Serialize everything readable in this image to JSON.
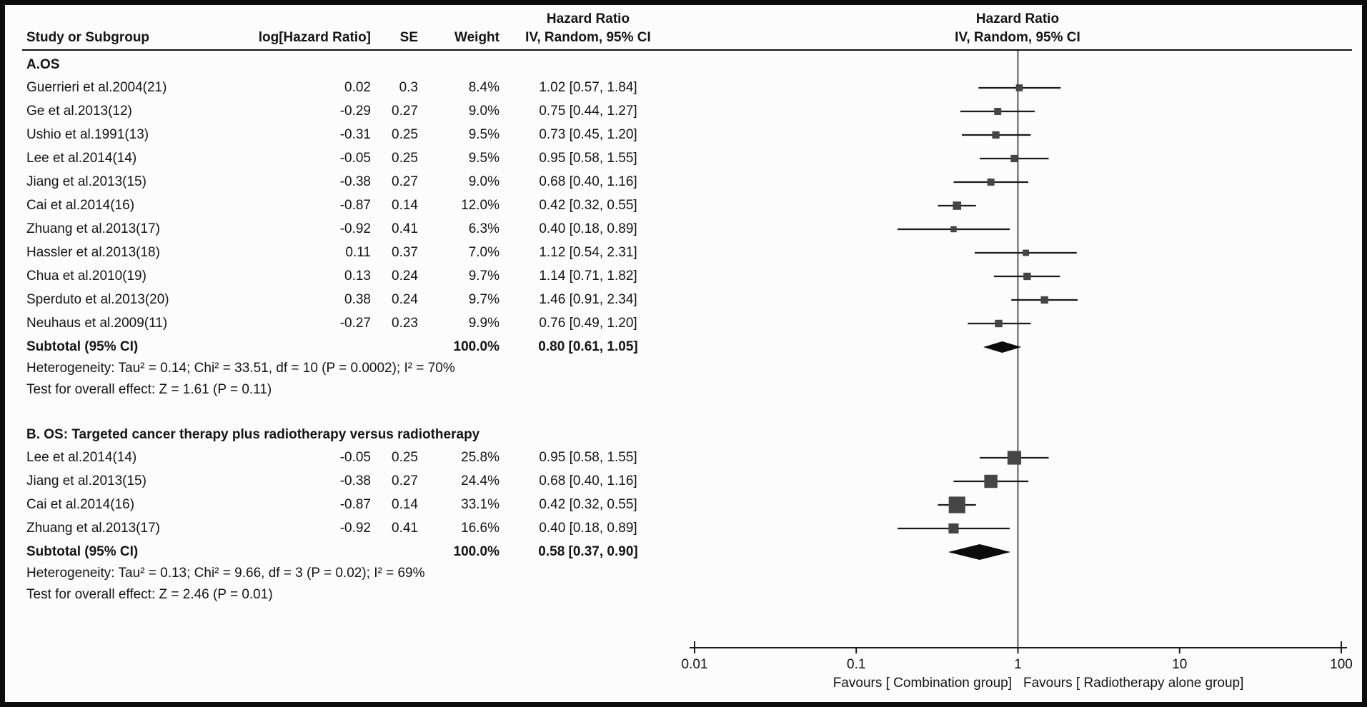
{
  "header": {
    "hr_title": "Hazard Ratio",
    "iv_random": "IV, Random, 95% CI",
    "study": "Study or Subgroup",
    "loghr": "log[Hazard Ratio]",
    "se": "SE",
    "weight": "Weight"
  },
  "chart_data": {
    "type": "forest",
    "x_scale": "log",
    "x_range": [
      0.01,
      100
    ],
    "x_ticks": [
      "0.01",
      "0.1",
      "1",
      "10",
      "100"
    ],
    "favours_left": "Favours [ Combination group]",
    "favours_right": "Favours [ Radiotherapy alone group]",
    "marker_color": "#454545",
    "line_color": "#1b1b1b",
    "sections": [
      {
        "label": "A.OS",
        "studies": [
          {
            "name": "Guerrieri et al.2004(21)",
            "log_hr": "0.02",
            "se": "0.3",
            "weight": "8.4%",
            "ci_text": "1.02 [0.57, 1.84]",
            "hr": 1.02,
            "lo": 0.57,
            "hi": 1.84,
            "weight_pct": 8.4
          },
          {
            "name": "Ge et al.2013(12)",
            "log_hr": "-0.29",
            "se": "0.27",
            "weight": "9.0%",
            "ci_text": "0.75 [0.44, 1.27]",
            "hr": 0.75,
            "lo": 0.44,
            "hi": 1.27,
            "weight_pct": 9.0
          },
          {
            "name": "Ushio et al.1991(13)",
            "log_hr": "-0.31",
            "se": "0.25",
            "weight": "9.5%",
            "ci_text": "0.73 [0.45, 1.20]",
            "hr": 0.73,
            "lo": 0.45,
            "hi": 1.2,
            "weight_pct": 9.5
          },
          {
            "name": "Lee et al.2014(14)",
            "log_hr": "-0.05",
            "se": "0.25",
            "weight": "9.5%",
            "ci_text": "0.95 [0.58, 1.55]",
            "hr": 0.95,
            "lo": 0.58,
            "hi": 1.55,
            "weight_pct": 9.5
          },
          {
            "name": "Jiang et al.2013(15)",
            "log_hr": "-0.38",
            "se": "0.27",
            "weight": "9.0%",
            "ci_text": "0.68 [0.40, 1.16]",
            "hr": 0.68,
            "lo": 0.4,
            "hi": 1.16,
            "weight_pct": 9.0
          },
          {
            "name": "Cai et al.2014(16)",
            "log_hr": "-0.87",
            "se": "0.14",
            "weight": "12.0%",
            "ci_text": "0.42 [0.32, 0.55]",
            "hr": 0.42,
            "lo": 0.32,
            "hi": 0.55,
            "weight_pct": 12.0
          },
          {
            "name": "Zhuang et al.2013(17)",
            "log_hr": "-0.92",
            "se": "0.41",
            "weight": "6.3%",
            "ci_text": "0.40 [0.18, 0.89]",
            "hr": 0.4,
            "lo": 0.18,
            "hi": 0.89,
            "weight_pct": 6.3
          },
          {
            "name": "Hassler et al.2013(18)",
            "log_hr": "0.11",
            "se": "0.37",
            "weight": "7.0%",
            "ci_text": "1.12 [0.54, 2.31]",
            "hr": 1.12,
            "lo": 0.54,
            "hi": 2.31,
            "weight_pct": 7.0
          },
          {
            "name": "Chua et al.2010(19)",
            "log_hr": "0.13",
            "se": "0.24",
            "weight": "9.7%",
            "ci_text": "1.14 [0.71, 1.82]",
            "hr": 1.14,
            "lo": 0.71,
            "hi": 1.82,
            "weight_pct": 9.7
          },
          {
            "name": "Sperduto et al.2013(20)",
            "log_hr": "0.38",
            "se": "0.24",
            "weight": "9.7%",
            "ci_text": "1.46 [0.91, 2.34]",
            "hr": 1.46,
            "lo": 0.91,
            "hi": 2.34,
            "weight_pct": 9.7
          },
          {
            "name": "Neuhaus et al.2009(11)",
            "log_hr": "-0.27",
            "se": "0.23",
            "weight": "9.9%",
            "ci_text": "0.76 [0.49, 1.20]",
            "hr": 0.76,
            "lo": 0.49,
            "hi": 1.2,
            "weight_pct": 9.9
          }
        ],
        "subtotal": {
          "label": "Subtotal (95% CI)",
          "weight": "100.0%",
          "ci_text": "0.80 [0.61, 1.05]",
          "hr": 0.8,
          "lo": 0.61,
          "hi": 1.05
        },
        "heterogeneity": "Heterogeneity: Tau² = 0.14; Chi² = 33.51, df = 10 (P = 0.0002); I² = 70%",
        "overall_effect": "Test for overall effect: Z = 1.61 (P = 0.11)"
      },
      {
        "label": "B. OS: Targeted cancer therapy plus radiotherapy versus radiotherapy",
        "studies": [
          {
            "name": "Lee et al.2014(14)",
            "log_hr": "-0.05",
            "se": "0.25",
            "weight": "25.8%",
            "ci_text": "0.95 [0.58, 1.55]",
            "hr": 0.95,
            "lo": 0.58,
            "hi": 1.55,
            "weight_pct": 25.8
          },
          {
            "name": "Jiang et al.2013(15)",
            "log_hr": "-0.38",
            "se": "0.27",
            "weight": "24.4%",
            "ci_text": "0.68 [0.40, 1.16]",
            "hr": 0.68,
            "lo": 0.4,
            "hi": 1.16,
            "weight_pct": 24.4
          },
          {
            "name": "Cai et al.2014(16)",
            "log_hr": "-0.87",
            "se": "0.14",
            "weight": "33.1%",
            "ci_text": "0.42 [0.32, 0.55]",
            "hr": 0.42,
            "lo": 0.32,
            "hi": 0.55,
            "weight_pct": 33.1
          },
          {
            "name": "Zhuang et al.2013(17)",
            "log_hr": "-0.92",
            "se": "0.41",
            "weight": "16.6%",
            "ci_text": "0.40 [0.18, 0.89]",
            "hr": 0.4,
            "lo": 0.18,
            "hi": 0.89,
            "weight_pct": 16.6
          }
        ],
        "subtotal": {
          "label": "Subtotal (95% CI)",
          "weight": "100.0%",
          "ci_text": "0.58 [0.37, 0.90]",
          "hr": 0.58,
          "lo": 0.37,
          "hi": 0.9
        },
        "heterogeneity": "Heterogeneity: Tau² = 0.13; Chi² = 9.66, df = 3 (P = 0.02); I² = 69%",
        "overall_effect": "Test for overall effect: Z = 2.46 (P = 0.01)"
      }
    ]
  }
}
